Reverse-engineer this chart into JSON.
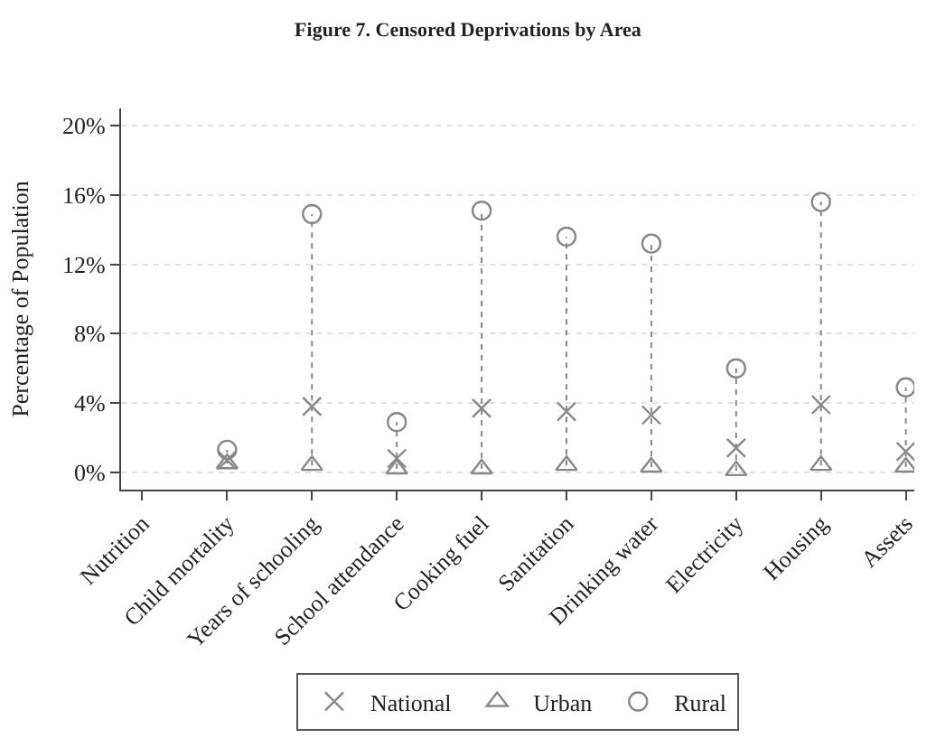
{
  "chart_data": {
    "type": "scatter",
    "title": "Figure 7. Censored Deprivations by Area",
    "ylabel": "Percentage of Population",
    "categories": [
      "Nutrition",
      "Child mortality",
      "Years of schooling",
      "School attendance",
      "Cooking fuel",
      "Sanitation",
      "Drinking water",
      "Electricity",
      "Housing",
      "Assets"
    ],
    "series": [
      {
        "name": "National",
        "color": "#888888",
        "marker": "cross",
        "values": [
          null,
          0.7,
          3.8,
          0.8,
          3.7,
          3.5,
          3.3,
          1.4,
          3.9,
          1.2
        ]
      },
      {
        "name": "Urban",
        "color": "#888888",
        "marker": "triangle",
        "values": [
          null,
          0.5,
          0.4,
          0.2,
          0.2,
          0.4,
          0.3,
          0.1,
          0.4,
          0.3
        ]
      },
      {
        "name": "Rural",
        "color": "#888888",
        "marker": "circle",
        "values": [
          null,
          1.3,
          14.9,
          2.9,
          15.1,
          13.6,
          13.2,
          6.0,
          15.6,
          4.9
        ]
      }
    ],
    "ylim": [
      -1,
      21
    ],
    "yticks": [
      {
        "value": 0,
        "label": "0%"
      },
      {
        "value": 4,
        "label": "4%"
      },
      {
        "value": 8,
        "label": "8%"
      },
      {
        "value": 12,
        "label": "12%"
      },
      {
        "value": 16,
        "label": "16%"
      },
      {
        "value": 20,
        "label": "20%"
      }
    ],
    "grid": "y",
    "legend": "bottom"
  }
}
